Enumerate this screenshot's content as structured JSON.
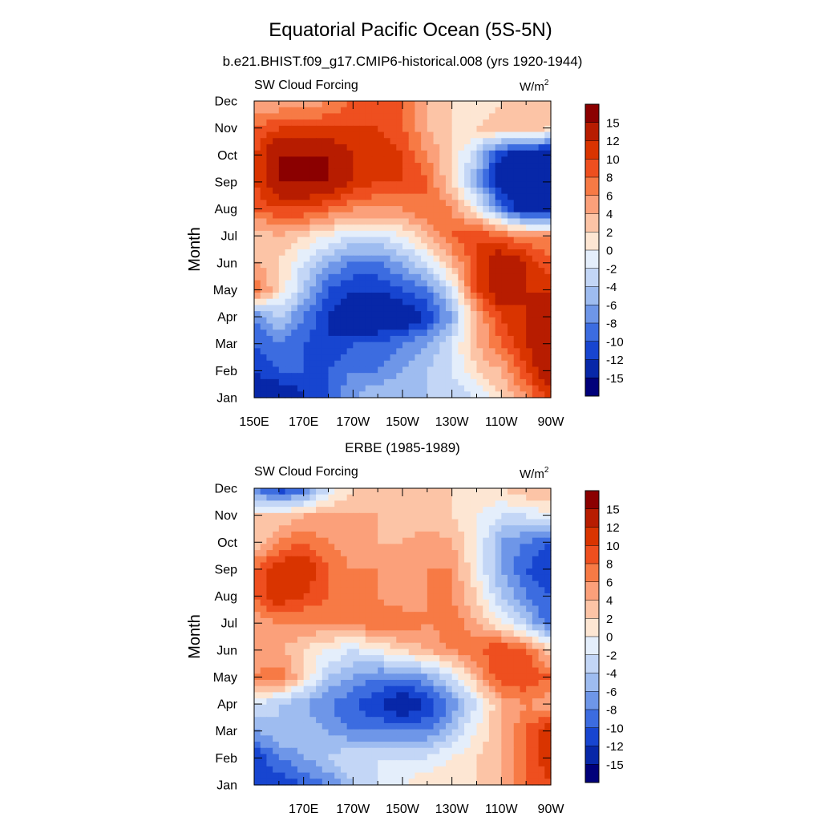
{
  "title": "Equatorial Pacific Ocean (5S-5N)",
  "colorbar": {
    "labels": [
      "15",
      "12",
      "10",
      "8",
      "6",
      "4",
      "2",
      "0",
      "-2",
      "-4",
      "-6",
      "-8",
      "-10",
      "-12",
      "-15"
    ],
    "colors": [
      "#8b0000",
      "#b71c00",
      "#d93400",
      "#ee4f1f",
      "#f77a45",
      "#fba07a",
      "#fcc4a6",
      "#fde6d3",
      "#e4eefb",
      "#c3d6f6",
      "#9ebcf0",
      "#6e96e8",
      "#3c6ce0",
      "#1745d0",
      "#0727a8",
      "#00007a"
    ]
  },
  "chart_data": [
    {
      "type": "heatmap",
      "title": "b.e21.BHIST.f09_g17.CMIP6-historical.008 (yrs 1920-1944)",
      "left_label": "SW Cloud Forcing",
      "units": "W/m",
      "units_sup": "2",
      "ylabel": "Month",
      "xlabel": "",
      "x_ticks": [
        "150E",
        "170E",
        "170W",
        "150W",
        "130W",
        "110W",
        "90W"
      ],
      "y_ticks": [
        "Jan",
        "Feb",
        "Mar",
        "Apr",
        "May",
        "Jun",
        "Jul",
        "Aug",
        "Sep",
        "Oct",
        "Nov",
        "Dec"
      ],
      "x": [
        150,
        160,
        170,
        180,
        190,
        200,
        210,
        220,
        230,
        240,
        250,
        260,
        270
      ],
      "y": [
        1,
        2,
        3,
        4,
        5,
        6,
        7,
        8,
        9,
        10,
        11,
        12
      ],
      "z": [
        [
          -15,
          -15,
          -12,
          -10,
          -6,
          -4,
          -4,
          -4,
          -4,
          -2,
          2,
          6,
          10
        ],
        [
          -12,
          -10,
          -10,
          -10,
          -8,
          -8,
          -6,
          -4,
          -2,
          2,
          4,
          10,
          15
        ],
        [
          -10,
          -8,
          -10,
          -12,
          -10,
          -10,
          -8,
          -6,
          -2,
          4,
          8,
          12,
          15
        ],
        [
          -8,
          -4,
          -8,
          -12,
          -15,
          -15,
          -15,
          -12,
          -6,
          4,
          10,
          12,
          15
        ],
        [
          8,
          2,
          -4,
          -10,
          -12,
          -12,
          -10,
          -8,
          -2,
          10,
          15,
          12,
          12
        ],
        [
          4,
          2,
          -2,
          -6,
          -8,
          -8,
          -6,
          -2,
          4,
          10,
          15,
          12,
          8
        ],
        [
          2,
          4,
          2,
          0,
          -2,
          -2,
          0,
          4,
          8,
          10,
          8,
          6,
          6
        ],
        [
          8,
          10,
          10,
          8,
          6,
          6,
          6,
          8,
          6,
          0,
          -8,
          -15,
          -15
        ],
        [
          10,
          15,
          15,
          15,
          12,
          10,
          10,
          8,
          2,
          -6,
          -15,
          -15,
          -15
        ],
        [
          10,
          15,
          15,
          15,
          12,
          12,
          10,
          6,
          2,
          -4,
          -12,
          -15,
          -15
        ],
        [
          8,
          10,
          10,
          10,
          10,
          10,
          8,
          4,
          2,
          2,
          4,
          4,
          2
        ],
        [
          4,
          4,
          4,
          6,
          8,
          8,
          8,
          4,
          2,
          0,
          2,
          2,
          2
        ]
      ],
      "xlim": [
        150,
        270
      ],
      "ylim": [
        1,
        12
      ]
    },
    {
      "type": "heatmap",
      "title": "ERBE (1985-1989)",
      "left_label": "SW Cloud Forcing",
      "units": "W/m",
      "units_sup": "2",
      "ylabel": "Month",
      "xlabel": "",
      "x_ticks": [
        "",
        "170E",
        "170W",
        "150W",
        "130W",
        "110W",
        "90W"
      ],
      "y_ticks": [
        "Jan",
        "Feb",
        "Mar",
        "Apr",
        "May",
        "Jun",
        "Jul",
        "Aug",
        "Sep",
        "Oct",
        "Nov",
        "Dec"
      ],
      "x": [
        150,
        160,
        170,
        180,
        190,
        200,
        210,
        220,
        230,
        240,
        250,
        260,
        270
      ],
      "y": [
        1,
        2,
        3,
        4,
        5,
        6,
        7,
        8,
        9,
        10,
        11,
        12
      ],
      "z": [
        [
          -12,
          -12,
          -10,
          -8,
          -4,
          -2,
          0,
          2,
          2,
          2,
          4,
          8,
          10
        ],
        [
          -12,
          -8,
          -6,
          -4,
          -2,
          -2,
          -2,
          -2,
          0,
          2,
          4,
          8,
          12
        ],
        [
          -6,
          -4,
          -4,
          -6,
          -8,
          -8,
          -8,
          -8,
          -4,
          0,
          4,
          8,
          12
        ],
        [
          -2,
          -4,
          -6,
          -8,
          -10,
          -12,
          -15,
          -12,
          -8,
          -2,
          4,
          6,
          4
        ],
        [
          6,
          8,
          2,
          -4,
          -6,
          -8,
          -8,
          -6,
          -2,
          4,
          10,
          10,
          8
        ],
        [
          4,
          4,
          2,
          0,
          -2,
          0,
          2,
          4,
          6,
          8,
          10,
          8,
          2
        ],
        [
          4,
          6,
          6,
          6,
          6,
          8,
          8,
          6,
          8,
          4,
          0,
          -4,
          -10
        ],
        [
          8,
          12,
          10,
          8,
          6,
          6,
          4,
          6,
          6,
          2,
          -4,
          -8,
          -10
        ],
        [
          8,
          12,
          12,
          8,
          6,
          6,
          4,
          6,
          6,
          0,
          -6,
          -10,
          -12
        ],
        [
          2,
          6,
          8,
          6,
          4,
          4,
          4,
          6,
          4,
          0,
          -6,
          -8,
          -10
        ],
        [
          2,
          2,
          4,
          4,
          4,
          4,
          2,
          2,
          2,
          0,
          -2,
          -2,
          0
        ],
        [
          -8,
          -12,
          -10,
          -2,
          2,
          2,
          2,
          2,
          2,
          2,
          2,
          4,
          4
        ]
      ],
      "xlim": [
        150,
        270
      ],
      "ylim": [
        1,
        12
      ]
    }
  ]
}
